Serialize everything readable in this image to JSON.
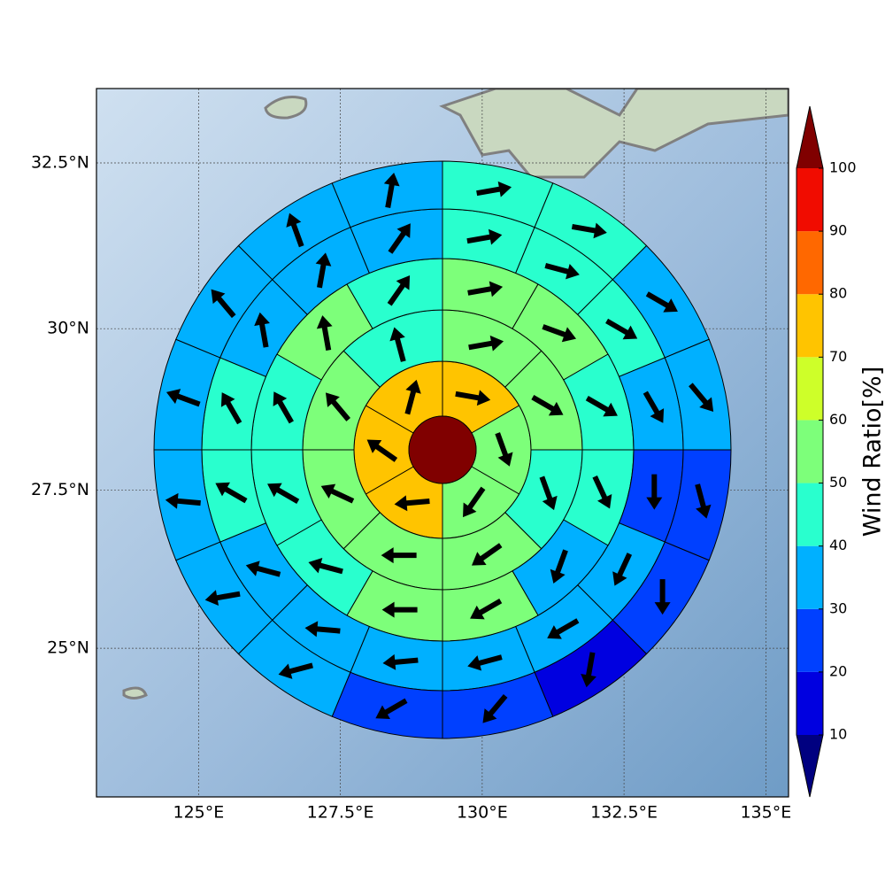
{
  "chart_data": {
    "type": "sector",
    "xlim": [
      123.2,
      135.4
    ],
    "ylim": [
      22.6,
      33.6
    ],
    "xticks": [
      {
        "value": 125,
        "label": "125°E"
      },
      {
        "value": 127.5,
        "label": "127.5°E"
      },
      {
        "value": 130,
        "label": "130°E"
      },
      {
        "value": 132.5,
        "label": "132.5°E"
      },
      {
        "value": 135,
        "label": "135°E"
      }
    ],
    "yticks": [
      {
        "value": 25,
        "label": "25°N"
      },
      {
        "value": 27.5,
        "label": "27.5°N"
      },
      {
        "value": 30,
        "label": "30°N"
      },
      {
        "value": 32.5,
        "label": "32.5°N"
      }
    ],
    "grid": true,
    "center": {
      "value": 105
    },
    "rings": [
      {
        "values": [
          75,
          55,
          55,
          75,
          75,
          75
        ],
        "directions": [
          100,
          160,
          215,
          265,
          305,
          15
        ]
      },
      {
        "values": [
          55,
          55,
          45,
          55,
          55,
          55,
          55,
          45
        ],
        "directions": [
          80,
          120,
          160,
          235,
          270,
          295,
          320,
          345
        ]
      },
      {
        "values": [
          55,
          55,
          45,
          45,
          35,
          55,
          55,
          45,
          45,
          45,
          55,
          45
        ],
        "directions": [
          80,
          110,
          120,
          155,
          200,
          240,
          270,
          285,
          300,
          330,
          350,
          35
        ]
      },
      {
        "values": [
          45,
          45,
          45,
          35,
          25,
          35,
          35,
          35,
          35,
          35,
          35,
          45,
          45,
          35,
          35,
          35
        ],
        "directions": [
          80,
          105,
          120,
          150,
          180,
          205,
          240,
          255,
          265,
          275,
          285,
          300,
          330,
          350,
          10,
          35
        ]
      },
      {
        "values": [
          45,
          45,
          35,
          35,
          25,
          25,
          15,
          25,
          25,
          35,
          35,
          35,
          35,
          35,
          35,
          35
        ],
        "directions": [
          80,
          100,
          120,
          140,
          165,
          180,
          190,
          220,
          240,
          255,
          260,
          275,
          290,
          320,
          340,
          10
        ]
      }
    ],
    "colorbar": {
      "label": "Wind Ratio[%]",
      "levels": [
        10,
        20,
        30,
        40,
        50,
        60,
        70,
        80,
        90,
        100
      ],
      "colors": [
        "#0000e0",
        "#0040ff",
        "#00b0ff",
        "#29ffce",
        "#7dff7a",
        "#ceff29",
        "#ffc400",
        "#ff6800",
        "#f10c00"
      ],
      "under_color": "#000080",
      "over_color": "#800000"
    }
  }
}
